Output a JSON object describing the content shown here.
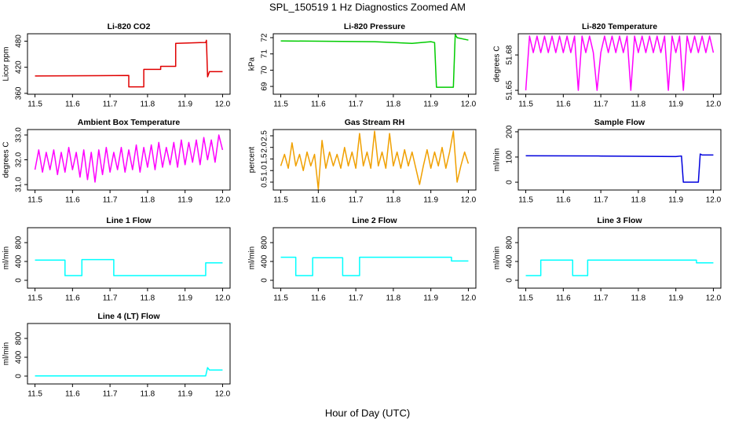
{
  "title": "SPL_150519  1 Hz Diagnostics Zoomed AM",
  "xlabel": "Hour of Day (UTC)",
  "chart_data": [
    {
      "type": "line",
      "title": "Li-820 CO2",
      "ylabel": "Licor ppm",
      "color": "#e00000",
      "x": [
        11.5,
        11.75,
        11.75,
        11.79,
        11.79,
        11.835,
        11.835,
        11.875,
        11.875,
        11.955,
        11.957,
        11.96,
        11.965,
        12.0
      ],
      "values": [
        400,
        401,
        375,
        375,
        415,
        415,
        422,
        422,
        475,
        477,
        482,
        398,
        410,
        410
      ],
      "xlim": [
        11.48,
        12.02
      ],
      "xticks": [
        11.5,
        11.6,
        11.7,
        11.8,
        11.9,
        {
          "value": 12,
          "label": "12.0"
        }
      ],
      "ylim": [
        358,
        497
      ],
      "yticks": [
        360,
        420,
        480
      ]
    },
    {
      "type": "line",
      "title": "Li-820 Pressure",
      "ylabel": "kPa",
      "color": "#00cc00",
      "x": [
        11.5,
        11.75,
        11.85,
        11.9,
        11.91,
        11.915,
        11.96,
        11.965,
        11.97,
        12.0
      ],
      "values": [
        71.8,
        71.75,
        71.65,
        71.75,
        71.7,
        68.95,
        68.95,
        72.2,
        72.0,
        71.85
      ],
      "xlim": [
        11.48,
        12.02
      ],
      "xticks": [
        11.5,
        11.6,
        11.7,
        11.8,
        11.9,
        {
          "value": 12,
          "label": "12.0"
        }
      ],
      "ylim": [
        68.52,
        72.24
      ],
      "yticks": [
        69,
        70,
        71,
        72
      ]
    },
    {
      "type": "line",
      "title": "Li-820 Temperature",
      "ylabel": "degrees C",
      "color": "#ff00ff",
      "x": [
        11.5,
        11.51,
        11.52,
        11.53,
        11.54,
        11.55,
        11.56,
        11.57,
        11.58,
        11.59,
        11.6,
        11.61,
        11.62,
        11.63,
        11.64,
        11.65,
        11.66,
        11.67,
        11.68,
        11.69,
        11.7,
        11.71,
        11.72,
        11.73,
        11.74,
        11.75,
        11.76,
        11.77,
        11.78,
        11.79,
        11.8,
        11.81,
        11.82,
        11.83,
        11.84,
        11.85,
        11.86,
        11.87,
        11.88,
        11.89,
        11.9,
        11.91,
        11.92,
        11.93,
        11.94,
        11.95,
        11.96,
        11.97,
        11.98,
        11.99,
        12.0
      ],
      "values": [
        51.65,
        51.696,
        51.682,
        51.696,
        51.682,
        51.696,
        51.682,
        51.696,
        51.682,
        51.696,
        51.682,
        51.696,
        51.682,
        51.696,
        51.65,
        51.696,
        51.682,
        51.696,
        51.682,
        51.65,
        51.682,
        51.696,
        51.682,
        51.696,
        51.682,
        51.696,
        51.682,
        51.696,
        51.65,
        51.696,
        51.682,
        51.696,
        51.682,
        51.696,
        51.682,
        51.696,
        51.682,
        51.696,
        51.65,
        51.696,
        51.682,
        51.696,
        51.65,
        51.696,
        51.682,
        51.696,
        51.682,
        51.696,
        51.682,
        51.696,
        51.682
      ],
      "xlim": [
        11.48,
        12.02
      ],
      "xticks": [
        11.5,
        11.6,
        11.7,
        11.8,
        11.9,
        {
          "value": 12,
          "label": "12.0"
        }
      ],
      "ylim": [
        51.6467,
        51.698
      ],
      "yticks": [
        51.65,
        51.68
      ]
    },
    {
      "type": "line",
      "title": "Ambient Box Temperature",
      "ylabel": "degrees C",
      "color": "#ff00ff",
      "x": [
        11.5,
        11.51,
        11.52,
        11.53,
        11.54,
        11.55,
        11.56,
        11.57,
        11.58,
        11.59,
        11.6,
        11.61,
        11.62,
        11.63,
        11.64,
        11.65,
        11.66,
        11.67,
        11.68,
        11.69,
        11.7,
        11.71,
        11.72,
        11.73,
        11.74,
        11.75,
        11.76,
        11.77,
        11.78,
        11.79,
        11.8,
        11.81,
        11.82,
        11.83,
        11.84,
        11.85,
        11.86,
        11.87,
        11.88,
        11.89,
        11.9,
        11.91,
        11.92,
        11.93,
        11.94,
        11.95,
        11.96,
        11.97,
        11.98,
        11.99,
        12.0
      ],
      "values": [
        31.6,
        32.4,
        31.5,
        32.3,
        31.6,
        32.4,
        31.4,
        32.3,
        31.5,
        32.5,
        31.6,
        32.3,
        31.3,
        32.4,
        31.2,
        32.3,
        31.1,
        32.4,
        31.4,
        32.5,
        31.5,
        32.3,
        31.6,
        32.5,
        31.5,
        32.4,
        31.6,
        32.6,
        31.5,
        32.5,
        31.7,
        32.6,
        31.6,
        32.7,
        31.7,
        32.5,
        31.8,
        32.7,
        31.7,
        32.8,
        31.8,
        32.7,
        31.9,
        32.8,
        31.8,
        32.9,
        32.0,
        32.8,
        31.9,
        33.0,
        32.4
      ],
      "xlim": [
        11.48,
        12.02
      ],
      "xticks": [
        11.5,
        11.6,
        11.7,
        11.8,
        11.9,
        {
          "value": 12,
          "label": "12.0"
        }
      ],
      "ylim": [
        30.78,
        33.22
      ],
      "yticks": [
        {
          "value": 31,
          "label": "31.0"
        },
        {
          "value": 32,
          "label": "32.0"
        },
        {
          "value": 33,
          "label": "33.0"
        }
      ]
    },
    {
      "type": "line",
      "title": "Gas Stream RH",
      "ylabel": "percent",
      "color": "#f0a000",
      "x": [
        11.5,
        11.51,
        11.52,
        11.53,
        11.54,
        11.55,
        11.56,
        11.57,
        11.58,
        11.59,
        11.6,
        11.61,
        11.62,
        11.63,
        11.64,
        11.65,
        11.66,
        11.67,
        11.68,
        11.69,
        11.7,
        11.71,
        11.72,
        11.73,
        11.74,
        11.75,
        11.76,
        11.77,
        11.78,
        11.79,
        11.8,
        11.81,
        11.82,
        11.83,
        11.84,
        11.85,
        11.86,
        11.87,
        11.88,
        11.89,
        11.9,
        11.91,
        11.92,
        11.93,
        11.94,
        11.95,
        11.96,
        11.97,
        11.98,
        11.99,
        12.0
      ],
      "values": [
        1.2,
        1.7,
        1.1,
        2.2,
        1.2,
        1.7,
        1.0,
        1.8,
        1.2,
        1.7,
        0.2,
        2.3,
        1.1,
        1.8,
        1.2,
        1.7,
        1.1,
        2.0,
        1.2,
        1.8,
        1.1,
        2.6,
        1.2,
        1.8,
        1.1,
        2.7,
        1.2,
        1.8,
        1.1,
        2.6,
        1.2,
        1.8,
        1.1,
        1.9,
        1.2,
        1.8,
        1.1,
        0.4,
        1.2,
        1.9,
        1.1,
        1.8,
        1.2,
        2.0,
        1.1,
        1.8,
        2.7,
        0.5,
        1.2,
        1.8,
        1.3
      ],
      "xlim": [
        11.48,
        12.02
      ],
      "xticks": [
        11.5,
        11.6,
        11.7,
        11.8,
        11.9,
        {
          "value": 12,
          "label": "12.0"
        }
      ],
      "ylim": [
        0.16,
        2.77
      ],
      "yticks": [
        0.5,
        {
          "value": 1,
          "label": "1.0"
        },
        1.5,
        {
          "value": 2,
          "label": "2.0"
        },
        2.5
      ]
    },
    {
      "type": "line",
      "title": "Sample Flow",
      "ylabel": "ml/min",
      "color": "#0000dd",
      "x": [
        11.5,
        11.7,
        11.9,
        11.915,
        11.92,
        11.96,
        11.965,
        11.97,
        12.0
      ],
      "values": [
        105,
        104,
        102,
        104,
        0,
        0,
        112,
        108,
        108
      ],
      "xlim": [
        11.48,
        12.02
      ],
      "xticks": [
        11.5,
        11.6,
        11.7,
        11.8,
        11.9,
        {
          "value": 12,
          "label": "12.0"
        }
      ],
      "ylim": [
        -31,
        209
      ],
      "yticks": [
        0,
        100,
        200
      ]
    },
    {
      "type": "line",
      "title": "Line 1 Flow",
      "ylabel": "ml/min",
      "color": "#00ffff",
      "x": [
        11.5,
        11.58,
        11.58,
        11.625,
        11.625,
        11.71,
        11.71,
        11.955,
        11.955,
        12.0
      ],
      "values": [
        430,
        430,
        100,
        100,
        440,
        440,
        100,
        100,
        370,
        370
      ],
      "xlim": [
        11.48,
        12.02
      ],
      "xticks": [
        11.5,
        11.6,
        11.7,
        11.8,
        11.9,
        {
          "value": 12,
          "label": "12.0"
        }
      ],
      "ylim": [
        -167,
        1117
      ],
      "yticks": [
        0,
        400,
        800
      ]
    },
    {
      "type": "line",
      "title": "Line 2 Flow",
      "ylabel": "ml/min",
      "color": "#00ffff",
      "x": [
        11.5,
        11.54,
        11.54,
        11.585,
        11.585,
        11.665,
        11.665,
        11.71,
        11.71,
        11.955,
        11.955,
        12.0
      ],
      "values": [
        490,
        490,
        100,
        100,
        480,
        480,
        100,
        100,
        490,
        490,
        410,
        410
      ],
      "xlim": [
        11.48,
        12.02
      ],
      "xticks": [
        11.5,
        11.6,
        11.7,
        11.8,
        11.9,
        {
          "value": 12,
          "label": "12.0"
        }
      ],
      "ylim": [
        -167,
        1117
      ],
      "yticks": [
        0,
        400,
        800
      ]
    },
    {
      "type": "line",
      "title": "Line 3 Flow",
      "ylabel": "ml/min",
      "color": "#00ffff",
      "x": [
        11.5,
        11.54,
        11.54,
        11.625,
        11.625,
        11.665,
        11.665,
        11.955,
        11.955,
        12.0
      ],
      "values": [
        100,
        100,
        430,
        430,
        100,
        100,
        430,
        430,
        370,
        370
      ],
      "xlim": [
        11.48,
        12.02
      ],
      "xticks": [
        11.5,
        11.6,
        11.7,
        11.8,
        11.9,
        {
          "value": 12,
          "label": "12.0"
        }
      ],
      "ylim": [
        -167,
        1117
      ],
      "yticks": [
        0,
        400,
        800
      ]
    },
    {
      "type": "line",
      "title": "Line 4 (LT) Flow",
      "ylabel": "ml/min",
      "color": "#00ffff",
      "x": [
        11.5,
        11.955,
        11.96,
        11.965,
        12.0
      ],
      "values": [
        5,
        5,
        180,
        130,
        130
      ],
      "xlim": [
        11.48,
        12.02
      ],
      "xticks": [
        11.5,
        11.6,
        11.7,
        11.8,
        11.9,
        {
          "value": 12,
          "label": "12.0"
        }
      ],
      "ylim": [
        -167,
        1117
      ],
      "yticks": [
        0,
        400,
        800
      ]
    }
  ]
}
